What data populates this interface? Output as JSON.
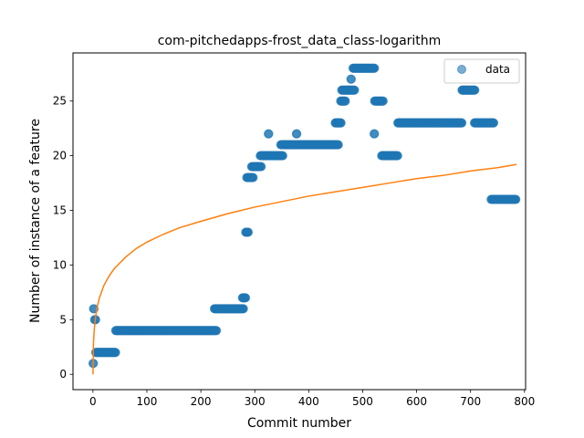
{
  "chart_data": {
    "type": "scatter",
    "title": "com-pitchedapps-frost_data_class-logarithm",
    "xlabel": "Commit number",
    "ylabel": "Number of instance of a feature",
    "xlim": [
      -37,
      802
    ],
    "ylim": [
      -1.4,
      29.4
    ],
    "xticks": [
      0,
      100,
      200,
      300,
      400,
      500,
      600,
      700,
      800
    ],
    "yticks": [
      0,
      5,
      10,
      15,
      20,
      25
    ],
    "grid": false,
    "legend": {
      "placement": "top-right",
      "entries": [
        "data"
      ]
    },
    "colors": {
      "data": "#1f77b4",
      "fit": "#ff7f0e"
    },
    "series": [
      {
        "name": "data",
        "kind": "scatter",
        "segments": [
          {
            "x_start": 0,
            "x_end": 1,
            "y": 1
          },
          {
            "x_start": 1,
            "x_end": 2,
            "y": 6
          },
          {
            "x_start": 3,
            "x_end": 5,
            "y": 5
          },
          {
            "x_start": 5,
            "x_end": 42,
            "y": 2
          },
          {
            "x_start": 42,
            "x_end": 229,
            "y": 4
          },
          {
            "x_start": 225,
            "x_end": 279,
            "y": 6
          },
          {
            "x_start": 277,
            "x_end": 283,
            "y": 7
          },
          {
            "x_start": 283,
            "x_end": 288,
            "y": 13
          },
          {
            "x_start": 285,
            "x_end": 297,
            "y": 18
          },
          {
            "x_start": 294,
            "x_end": 312,
            "y": 19
          },
          {
            "x_start": 310,
            "x_end": 352,
            "y": 20
          },
          {
            "x_start": 325,
            "x_end": 326,
            "y": 22
          },
          {
            "x_start": 348,
            "x_end": 455,
            "y": 21
          },
          {
            "x_start": 377,
            "x_end": 378,
            "y": 22
          },
          {
            "x_start": 449,
            "x_end": 460,
            "y": 23
          },
          {
            "x_start": 459,
            "x_end": 468,
            "y": 25
          },
          {
            "x_start": 461,
            "x_end": 485,
            "y": 26
          },
          {
            "x_start": 478,
            "x_end": 479,
            "y": 27
          },
          {
            "x_start": 482,
            "x_end": 522,
            "y": 28
          },
          {
            "x_start": 521,
            "x_end": 522,
            "y": 22
          },
          {
            "x_start": 522,
            "x_end": 538,
            "y": 25
          },
          {
            "x_start": 535,
            "x_end": 565,
            "y": 20
          },
          {
            "x_start": 565,
            "x_end": 684,
            "y": 23
          },
          {
            "x_start": 684,
            "x_end": 708,
            "y": 26
          },
          {
            "x_start": 707,
            "x_end": 743,
            "y": 23
          },
          {
            "x_start": 738,
            "x_end": 784,
            "y": 16
          }
        ]
      },
      {
        "name": "",
        "kind": "line",
        "points": [
          [
            0,
            0
          ],
          [
            1,
            2.9
          ],
          [
            2,
            3.8
          ],
          [
            3,
            4.4
          ],
          [
            5,
            5.3
          ],
          [
            8,
            6.2
          ],
          [
            12,
            7.0
          ],
          [
            20,
            8.1
          ],
          [
            30,
            9.0
          ],
          [
            40,
            9.7
          ],
          [
            60,
            10.7
          ],
          [
            80,
            11.5
          ],
          [
            100,
            12.1
          ],
          [
            130,
            12.8
          ],
          [
            160,
            13.4
          ],
          [
            200,
            14.0
          ],
          [
            250,
            14.7
          ],
          [
            300,
            15.3
          ],
          [
            350,
            15.8
          ],
          [
            400,
            16.3
          ],
          [
            450,
            16.7
          ],
          [
            500,
            17.1
          ],
          [
            550,
            17.5
          ],
          [
            600,
            17.9
          ],
          [
            650,
            18.2
          ],
          [
            700,
            18.6
          ],
          [
            750,
            18.9
          ],
          [
            785,
            19.2
          ]
        ]
      }
    ]
  }
}
